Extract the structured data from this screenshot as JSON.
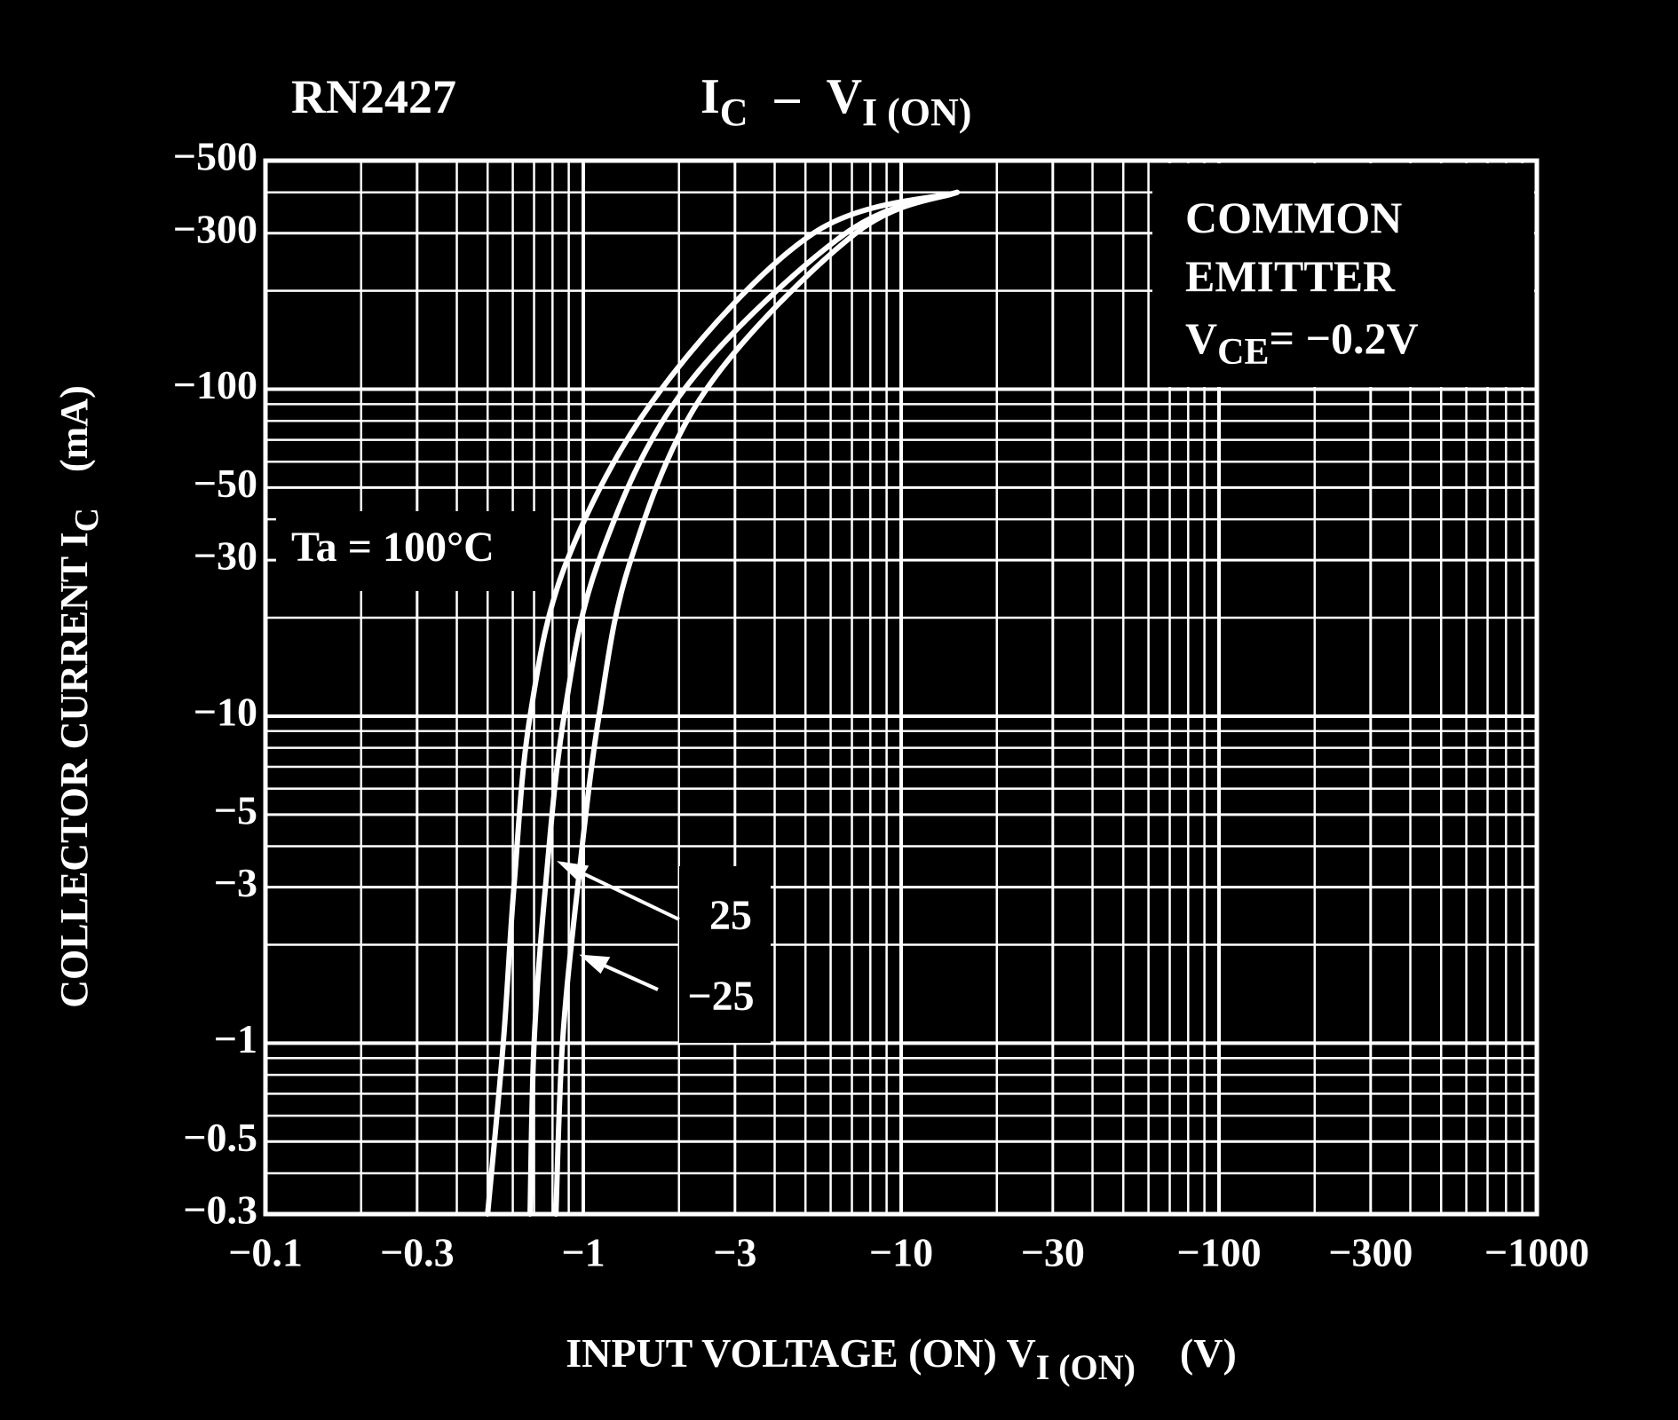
{
  "chart_data": {
    "type": "line",
    "title": "RN2427",
    "plot_title": {
      "main1": "I",
      "sub1": "C",
      "dash": "–",
      "main2": "V",
      "sub2": "I (ON)"
    },
    "xlabel": {
      "text": "INPUT VOLTAGE (ON)  V",
      "sub": "I (ON)",
      "unit": "(V)"
    },
    "ylabel": {
      "text": "COLLECTOR CURRENT  I",
      "sub": "C",
      "unit": "(mA)"
    },
    "annotation": {
      "lines": [
        "COMMON",
        "EMITTER"
      ],
      "main": "V",
      "sub": "CE",
      "rest": "= −0.2V"
    },
    "xlog": true,
    "ylog": true,
    "grid": true,
    "xlim": [
      -0.1,
      -1000
    ],
    "ylim": [
      -0.3,
      -500
    ],
    "xticks": [
      {
        "value": -0.1,
        "label": "−0.1"
      },
      {
        "value": -0.3,
        "label": "−0.3"
      },
      {
        "value": -1,
        "label": "−1"
      },
      {
        "value": -3,
        "label": "−3"
      },
      {
        "value": -10,
        "label": "−10"
      },
      {
        "value": -30,
        "label": "−30"
      },
      {
        "value": -100,
        "label": "−100"
      },
      {
        "value": -300,
        "label": "−300"
      },
      {
        "value": -1000,
        "label": "−1000"
      }
    ],
    "yticks": [
      {
        "value": -500,
        "label": "−500"
      },
      {
        "value": -300,
        "label": "−300"
      },
      {
        "value": -100,
        "label": "−100"
      },
      {
        "value": -50,
        "label": "−50"
      },
      {
        "value": -30,
        "label": "−30"
      },
      {
        "value": -10,
        "label": "−10"
      },
      {
        "value": -5,
        "label": "−5"
      },
      {
        "value": -3,
        "label": "−3"
      },
      {
        "value": -1,
        "label": "−1"
      },
      {
        "value": -0.5,
        "label": "−0.5"
      },
      {
        "value": -0.3,
        "label": "−0.3"
      }
    ],
    "xminor": [
      -0.2,
      -0.4,
      -0.5,
      -0.6,
      -0.7,
      -0.8,
      -0.9,
      -2,
      -4,
      -5,
      -6,
      -7,
      -8,
      -9,
      -20,
      -40,
      -50,
      -60,
      -70,
      -80,
      -90,
      -200,
      -400,
      -500,
      -600,
      -700,
      -800,
      -900
    ],
    "yminor": [
      -0.4,
      -0.6,
      -0.7,
      -0.8,
      -0.9,
      -2,
      -4,
      -6,
      -7,
      -8,
      -9,
      -20,
      -40,
      -60,
      -70,
      -80,
      -90,
      -200,
      -400
    ],
    "series": [
      {
        "name": "Ta = 100°C",
        "color": "#ffffff",
        "x": [
          -0.5,
          -0.56,
          -0.605,
          -0.68,
          -0.89,
          -1.76,
          -5.3,
          -15
        ],
        "values": [
          -0.3,
          -1,
          -3,
          -10,
          -30,
          -100,
          -300,
          -400
        ]
      },
      {
        "name": "25",
        "color": "#ffffff",
        "x": [
          -0.68,
          -0.7,
          -0.76,
          -0.87,
          -1.12,
          -2.08,
          -6.7,
          -15
        ],
        "values": [
          -0.3,
          -1,
          -3,
          -10,
          -30,
          -100,
          -300,
          -400
        ]
      },
      {
        "name": "−25",
        "color": "#ffffff",
        "x": [
          -0.82,
          -0.86,
          -0.96,
          -1.12,
          -1.41,
          -2.44,
          -7.2,
          -15
        ],
        "values": [
          -0.3,
          -1,
          -3,
          -10,
          -30,
          -100,
          -300,
          -400
        ]
      }
    ]
  }
}
